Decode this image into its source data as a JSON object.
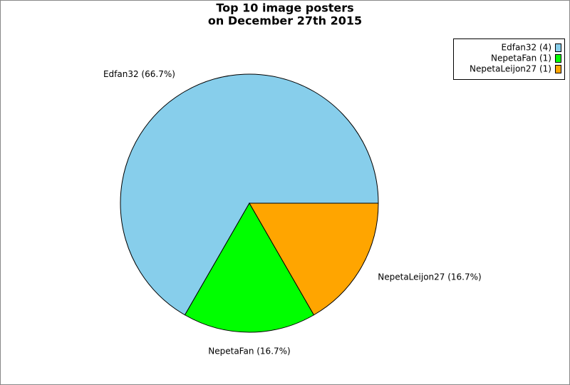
{
  "chart_data": {
    "type": "pie",
    "title": [
      "Top 10 image posters",
      "on December 27th 2015"
    ],
    "categories": [
      "Edfan32",
      "NepetaFan",
      "NepetaLeijon27"
    ],
    "values": [
      4,
      1,
      1
    ],
    "value_labels": [
      "Edfan32 (66.7%)",
      "NepetaFan (16.7%)",
      "NepetaLeijon27 (16.7%)"
    ],
    "legend_labels": [
      "Edfan32 (4)",
      "NepetaFan (1)",
      "NepetaLeijon27 (1)"
    ],
    "colors": [
      "#87ceeb",
      "#00ff00",
      "#ffa500"
    ],
    "legend": "upper right"
  }
}
